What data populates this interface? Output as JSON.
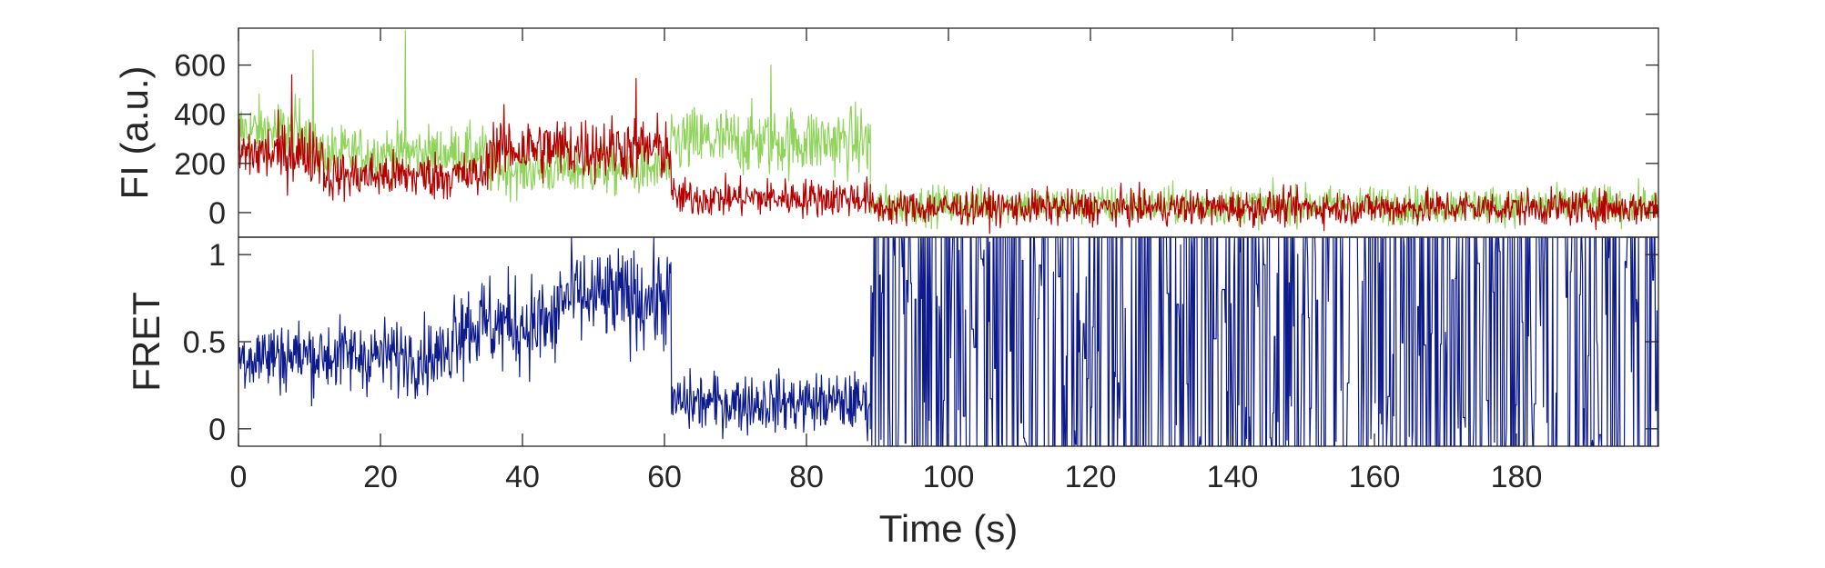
{
  "chart_data": [
    {
      "type": "line",
      "panel": "top",
      "ylabel": "FI (a.u.)",
      "xlabel": "",
      "xlim": [
        0,
        200
      ],
      "ylim": [
        -100,
        750
      ],
      "yticks": [
        0,
        200,
        400,
        600
      ],
      "xticks": [],
      "grid": false,
      "series": [
        {
          "color": "#8fd35a",
          "segments": [
            {
              "x0": 0,
              "x1": 10,
              "mean": 330,
              "noise": 95
            },
            {
              "x0": 10,
              "x1": 35,
              "mean": 240,
              "noise": 80
            },
            {
              "x0": 35,
              "x1": 61,
              "mean": 175,
              "noise": 75
            },
            {
              "x0": 61,
              "x1": 89,
              "mean": 290,
              "noise": 100
            },
            {
              "x0": 89,
              "x1": 200,
              "mean": 30,
              "noise": 55
            }
          ],
          "spikes": [
            {
              "x": 23.5,
              "y": 740
            },
            {
              "x": 10.5,
              "y": 660
            },
            {
              "x": 75,
              "y": 600
            }
          ]
        },
        {
          "color": "#b50000",
          "segments": [
            {
              "x0": 0,
              "x1": 12,
              "mean": 240,
              "noise": 90
            },
            {
              "x0": 12,
              "x1": 35,
              "mean": 150,
              "noise": 70
            },
            {
              "x0": 35,
              "x1": 61,
              "mean": 260,
              "noise": 95
            },
            {
              "x0": 61,
              "x1": 89,
              "mean": 60,
              "noise": 55
            },
            {
              "x0": 89,
              "x1": 200,
              "mean": 20,
              "noise": 50
            }
          ],
          "spikes": [
            {
              "x": 7.5,
              "y": 560
            },
            {
              "x": 56,
              "y": 545
            }
          ]
        }
      ]
    },
    {
      "type": "line",
      "panel": "bottom",
      "ylabel": "FRET",
      "xlabel": "Time (s)",
      "xlim": [
        0,
        200
      ],
      "ylim": [
        -0.1,
        1.1
      ],
      "yticks": [
        0,
        0.5,
        1
      ],
      "ytick_labels": [
        "0",
        "0.5",
        "1"
      ],
      "xticks": [
        0,
        20,
        40,
        60,
        80,
        100,
        120,
        140,
        160,
        180
      ],
      "xtick_labels": [
        "0",
        "20",
        "40",
        "60",
        "80",
        "100",
        "120",
        "140",
        "160",
        "180"
      ],
      "grid": false,
      "series": [
        {
          "color": "#0d1a8c",
          "segments": [
            {
              "x0": 0,
              "x1": 30,
              "mean": 0.42,
              "noise": 0.15
            },
            {
              "x0": 30,
              "x1": 45,
              "mean": 0.6,
              "noise": 0.2
            },
            {
              "x0": 45,
              "x1": 61,
              "mean": 0.75,
              "noise": 0.2
            },
            {
              "x0": 61,
              "x1": 89,
              "mean": 0.15,
              "noise": 0.12
            },
            {
              "x0": 89,
              "x1": 200,
              "mean": "alternating",
              "low": -0.1,
              "high": 1.1
            }
          ]
        }
      ]
    }
  ]
}
